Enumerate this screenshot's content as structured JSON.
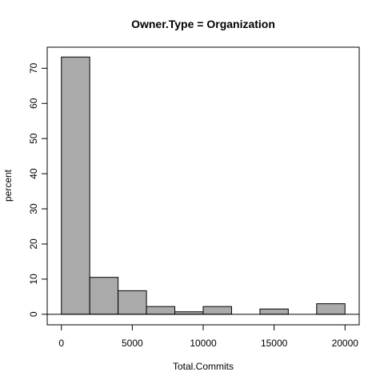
{
  "chart_data": {
    "type": "bar",
    "title": "Owner.Type = Organization",
    "xlabel": "Total.Commits",
    "ylabel": "percent",
    "bin_edges": [
      0,
      2000,
      4000,
      6000,
      8000,
      10000,
      12000,
      14000,
      16000,
      18000,
      20000
    ],
    "values": [
      73.2,
      10.5,
      6.7,
      2.2,
      0.7,
      2.2,
      0,
      1.5,
      0,
      3.0
    ],
    "xlim": [
      -1000,
      21000
    ],
    "ylim": [
      -3,
      76
    ],
    "x_ticks": [
      0,
      5000,
      10000,
      15000,
      20000
    ],
    "y_ticks": [
      0,
      10,
      20,
      30,
      40,
      50,
      60,
      70
    ],
    "x_tick_labels": [
      "0",
      "5000",
      "10000",
      "15000",
      "20000"
    ],
    "y_tick_labels": [
      "0",
      "10",
      "20",
      "30",
      "40",
      "50",
      "60",
      "70"
    ],
    "grid": false,
    "bar_color": "#aaaaaa"
  }
}
